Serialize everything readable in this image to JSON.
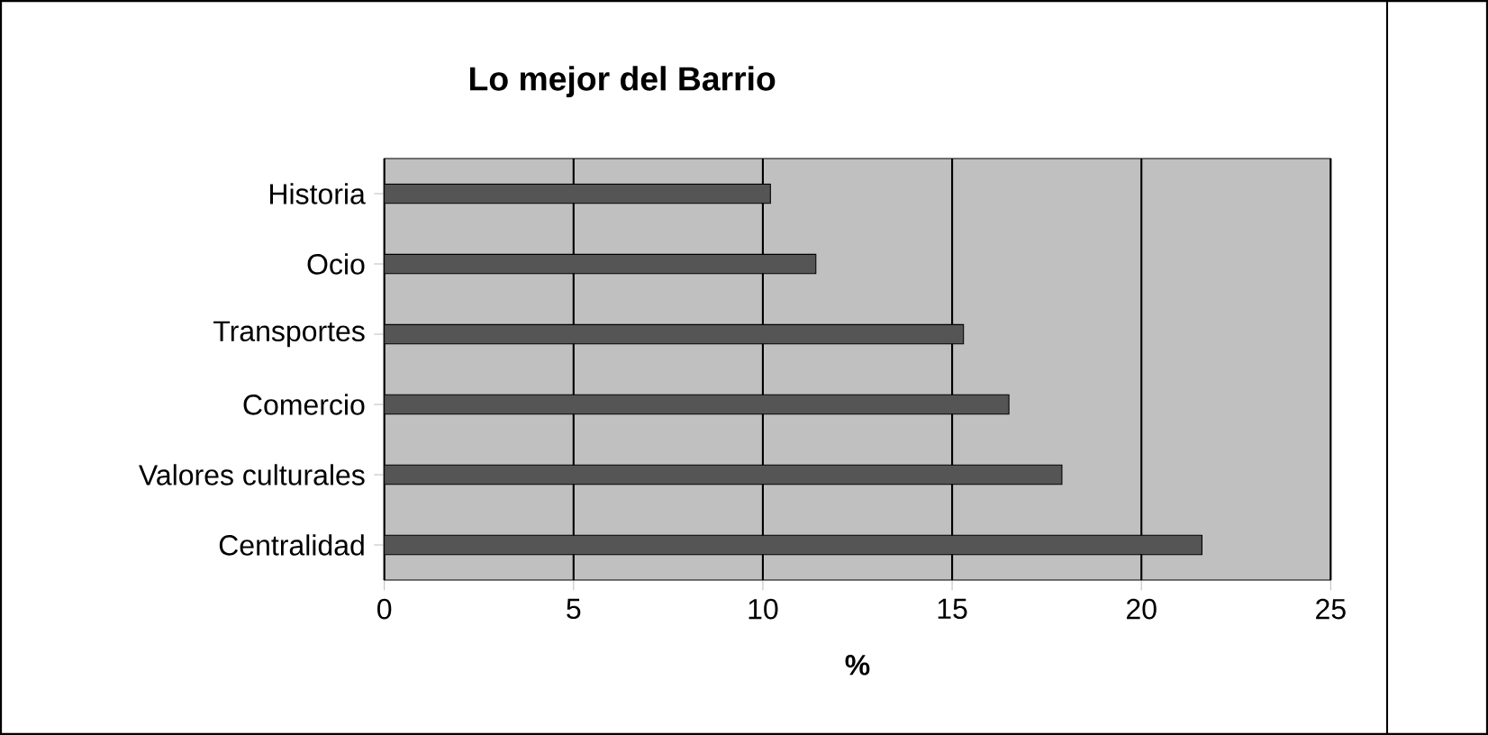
{
  "chart_data": {
    "type": "bar",
    "orientation": "horizontal",
    "title": "Lo mejor del Barrio",
    "xlabel": "%",
    "categories": [
      "Historia",
      "Ocio",
      "Transportes",
      "Comercio",
      "Valores culturales",
      "Centralidad"
    ],
    "values": [
      10.2,
      11.4,
      15.3,
      16.5,
      17.9,
      21.6
    ],
    "color": "#555555",
    "xlim": [
      0,
      25
    ],
    "xticks": [
      0,
      5,
      10,
      15,
      20,
      25
    ],
    "grid": "x"
  }
}
